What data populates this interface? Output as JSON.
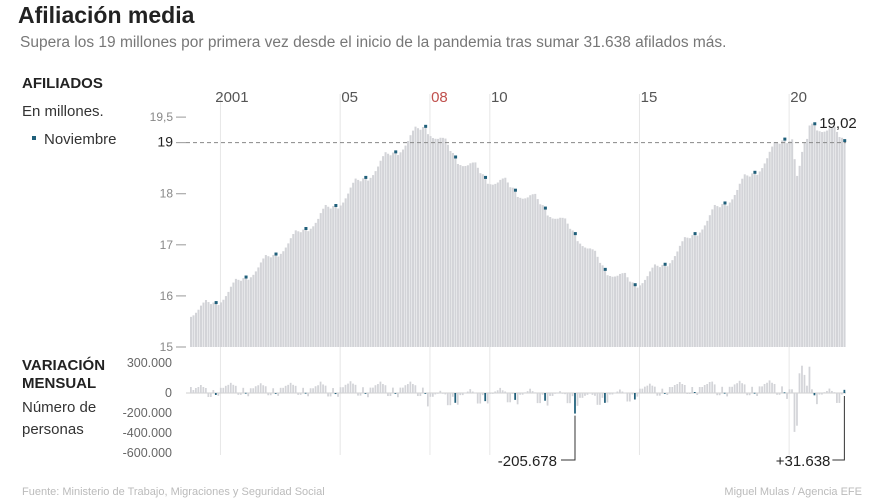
{
  "header": {
    "title": "Afiliación media",
    "subtitle": "Supera los 19 millones por primera vez desde el inicio de la pandemia tras sumar 31.638 afilados más."
  },
  "top_panel": {
    "label": "AFILIADOS",
    "unit": "En millones.",
    "legend": "Noviembre"
  },
  "bottom_panel": {
    "label_line1": "VARIACIÓN",
    "label_line2": "MENSUAL",
    "unit_line1": "Número de",
    "unit_line2": "personas"
  },
  "footer": {
    "source": "Fuente: Ministerio de Trabajo, Migraciones y Seguridad Social",
    "credit": "Miguel Mulas / Agencia EFE"
  },
  "colors": {
    "bar": "#d3d4d8",
    "november": "#1f5f7a",
    "highlight_year": "#c0504d"
  },
  "chart_data": [
    {
      "type": "bar",
      "panel": "afiliados",
      "ylim": [
        15,
        19.6
      ],
      "yticks": [
        {
          "value": 15,
          "label": "15"
        },
        {
          "value": 16,
          "label": "16"
        },
        {
          "value": 17,
          "label": "17"
        },
        {
          "value": 18,
          "label": "18"
        },
        {
          "value": 19,
          "label": "19"
        },
        {
          "value": 19.5,
          "label": "19,5"
        }
      ],
      "year_labels": [
        {
          "year": 2001,
          "label": "2001",
          "highlight": false
        },
        {
          "year": 2005,
          "label": "05",
          "highlight": false
        },
        {
          "year": 2008,
          "label": "08",
          "highlight": true
        },
        {
          "year": 2010,
          "label": "10",
          "highlight": false
        },
        {
          "year": 2015,
          "label": "15",
          "highlight": false
        },
        {
          "year": 2020,
          "label": "20",
          "highlight": false
        }
      ],
      "start": "2000-01",
      "end": "2021-11",
      "november_values": [
        15.85,
        16.35,
        16.8,
        17.3,
        17.75,
        18.3,
        18.8,
        19.3,
        18.7,
        18.3,
        18.05,
        17.7,
        17.2,
        16.5,
        16.2,
        16.6,
        17.2,
        17.8,
        18.4,
        19.05,
        19.35,
        19.02
      ],
      "reference_line": 19,
      "annotation_value": "19,02"
    },
    {
      "type": "bar",
      "panel": "variacion_mensual",
      "ylim": [
        -600000,
        300000
      ],
      "yticks": [
        {
          "value": 300000,
          "label": "300.000"
        },
        {
          "value": 0,
          "label": "0"
        },
        {
          "value": -200000,
          "label": "-200.000"
        },
        {
          "value": -400000,
          "label": "-400.000"
        },
        {
          "value": -600000,
          "label": "-600.000"
        }
      ],
      "annotations": [
        {
          "label": "-205.678",
          "date": "2012-11",
          "value": -205678
        },
        {
          "label": "+31.638",
          "date": "2021-11",
          "value": 31638
        }
      ]
    }
  ]
}
